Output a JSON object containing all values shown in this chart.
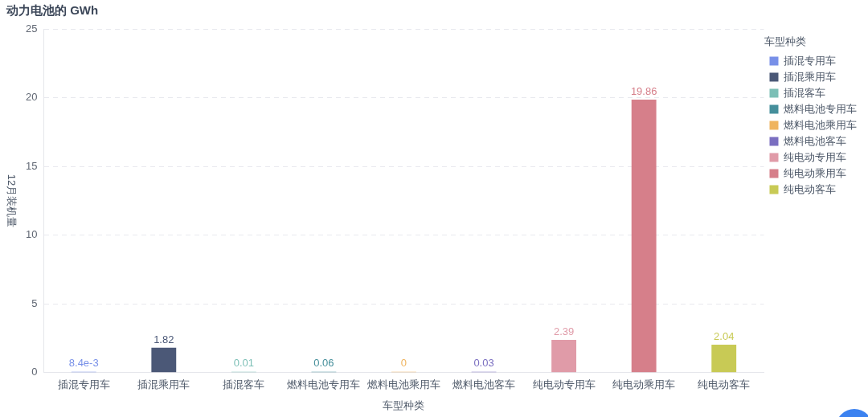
{
  "chart_data": {
    "type": "bar",
    "title": "动力电池的 GWh",
    "xlabel": "车型种类",
    "ylabel": "12月装机量",
    "legend_title": "车型种类",
    "categories": [
      "插混专用车",
      "插混乘用车",
      "插混客车",
      "燃料电池专用车",
      "燃料电池乘用车",
      "燃料电池客车",
      "纯电动专用车",
      "纯电动乘用车",
      "纯电动客车"
    ],
    "series": [
      {
        "name": "插混专用车",
        "color": "#7890e8",
        "values": [
          0.0084,
          null,
          null,
          null,
          null,
          null,
          null,
          null,
          null
        ],
        "value_labels": [
          "8.4e-3",
          null,
          null,
          null,
          null,
          null,
          null,
          null,
          null
        ]
      },
      {
        "name": "插混乘用车",
        "color": "#4b5877",
        "values": [
          null,
          1.82,
          null,
          null,
          null,
          null,
          null,
          null,
          null
        ],
        "value_labels": [
          null,
          "1.82",
          null,
          null,
          null,
          null,
          null,
          null,
          null
        ]
      },
      {
        "name": "插混客车",
        "color": "#7cbfb6",
        "values": [
          null,
          null,
          0.01,
          null,
          null,
          null,
          null,
          null,
          null
        ],
        "value_labels": [
          null,
          null,
          "0.01",
          null,
          null,
          null,
          null,
          null,
          null
        ]
      },
      {
        "name": "燃料电池专用车",
        "color": "#458f9b",
        "values": [
          null,
          null,
          null,
          0.06,
          null,
          null,
          null,
          null,
          null
        ],
        "value_labels": [
          null,
          null,
          null,
          "0.06",
          null,
          null,
          null,
          null,
          null
        ]
      },
      {
        "name": "燃料电池乘用车",
        "color": "#efb45f",
        "values": [
          null,
          null,
          null,
          null,
          0,
          null,
          null,
          null,
          null
        ],
        "value_labels": [
          null,
          null,
          null,
          null,
          "0",
          null,
          null,
          null,
          null
        ]
      },
      {
        "name": "燃料电池客车",
        "color": "#7a6ec0",
        "values": [
          null,
          null,
          null,
          null,
          null,
          0.03,
          null,
          null,
          null
        ],
        "value_labels": [
          null,
          null,
          null,
          null,
          null,
          "0.03",
          null,
          null,
          null
        ]
      },
      {
        "name": "纯电动专用车",
        "color": "#e09ba8",
        "values": [
          null,
          null,
          null,
          null,
          null,
          null,
          2.39,
          null,
          null
        ],
        "value_labels": [
          null,
          null,
          null,
          null,
          null,
          null,
          "2.39",
          null,
          null
        ]
      },
      {
        "name": "纯电动乘用车",
        "color": "#d67f8a",
        "values": [
          null,
          null,
          null,
          null,
          null,
          null,
          null,
          19.86,
          null
        ],
        "value_labels": [
          null,
          null,
          null,
          null,
          null,
          null,
          null,
          "19.86",
          null
        ]
      },
      {
        "name": "纯电动客车",
        "color": "#c8ca55",
        "values": [
          null,
          null,
          null,
          null,
          null,
          null,
          null,
          null,
          2.04
        ],
        "value_labels": [
          null,
          null,
          null,
          null,
          null,
          null,
          null,
          null,
          "2.04"
        ]
      }
    ],
    "ylim": [
      0,
      25
    ],
    "yticks": [
      0,
      5,
      10,
      15,
      20,
      25
    ],
    "grid": "y",
    "legend": "top right"
  }
}
